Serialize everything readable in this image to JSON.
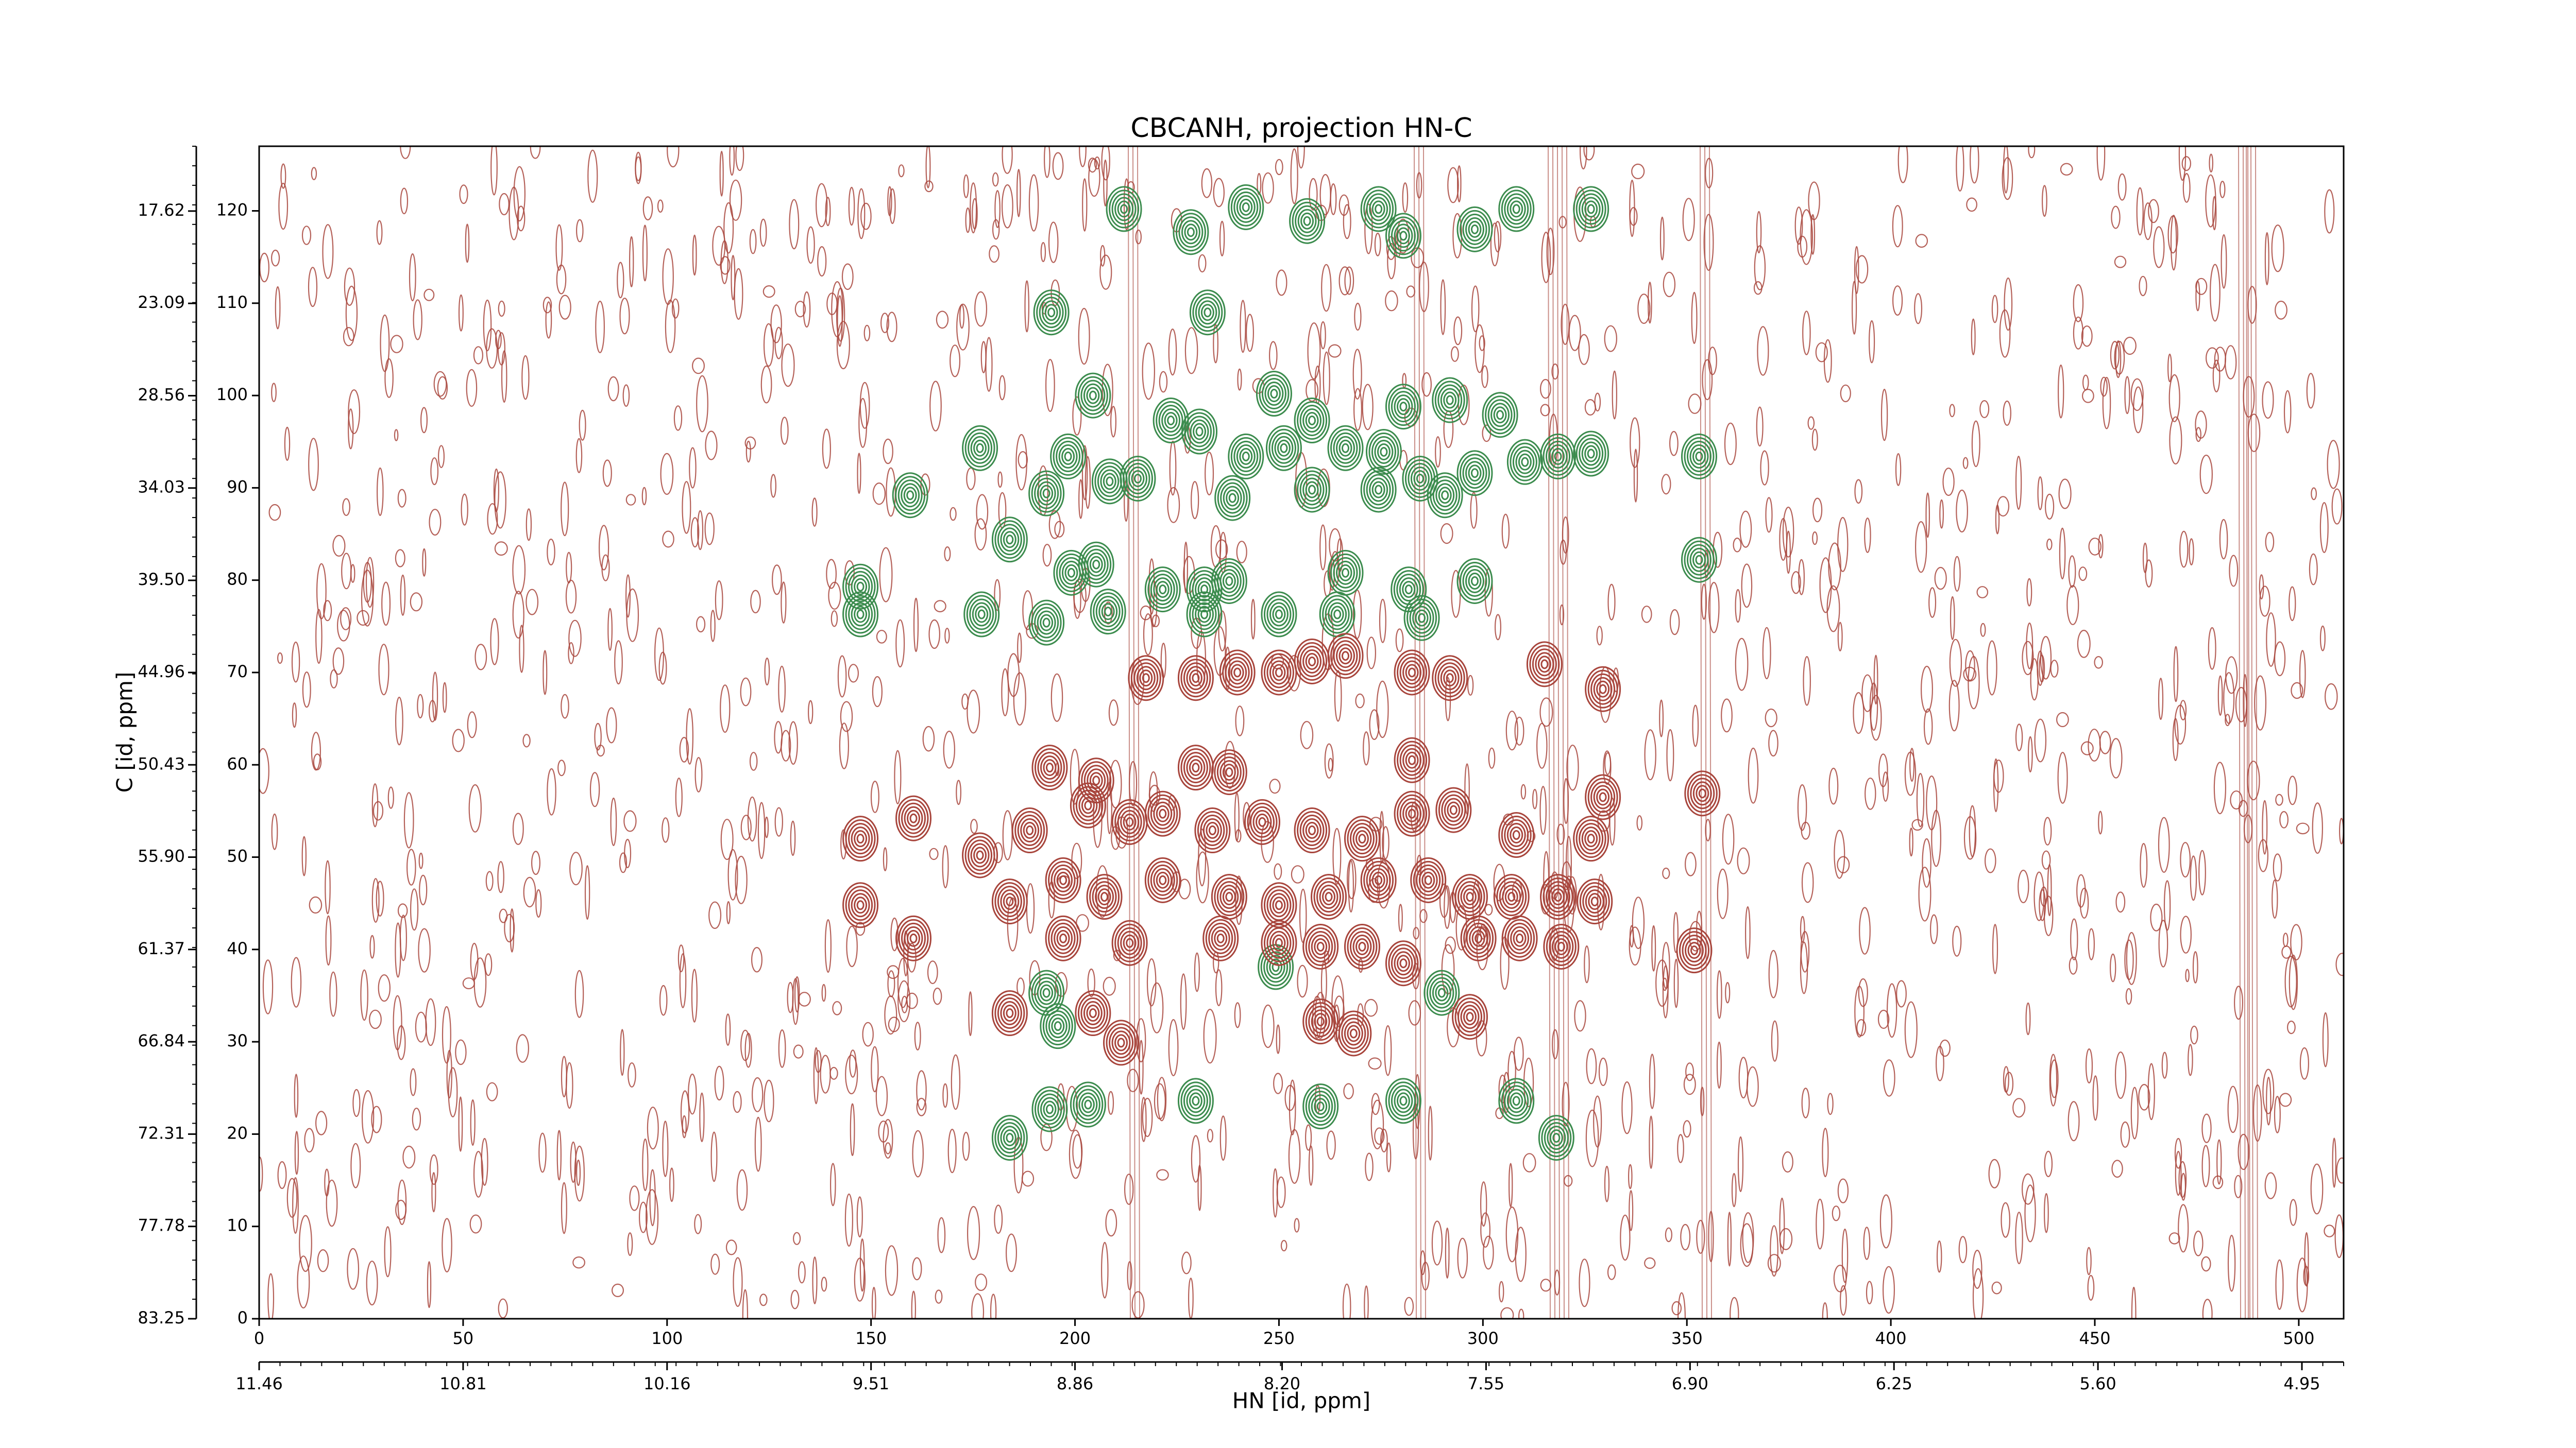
{
  "chart_data": {
    "type": "contour",
    "title": "CBCANH, projection HN-C",
    "xlabel": "HN [id, ppm]",
    "ylabel": "C [id, ppm]",
    "xlim": [
      0,
      511
    ],
    "ylim": [
      0,
      127
    ],
    "xticks": [
      0,
      50,
      100,
      150,
      200,
      250,
      300,
      350,
      400,
      450,
      500
    ],
    "yticks": [
      0,
      10,
      20,
      30,
      40,
      50,
      60,
      70,
      80,
      90,
      100,
      110,
      120
    ],
    "x2lim": [
      11.46,
      4.817
    ],
    "x2ticks": [
      11.46,
      10.81,
      10.16,
      9.51,
      8.86,
      {
        "value": 8.2,
        "label": "8.20"
      },
      7.55,
      {
        "value": 6.9,
        "label": "6.90"
      },
      6.25,
      {
        "value": 5.6,
        "label": "5.60"
      },
      4.95
    ],
    "y2lim": [
      83.25,
      13.78
    ],
    "y2ticks": [
      83.25,
      77.78,
      72.31,
      66.84,
      61.37,
      {
        "value": 55.9,
        "label": "55.90"
      },
      50.43,
      44.96,
      {
        "value": 39.5,
        "label": "39.50"
      },
      34.03,
      28.56,
      23.09,
      17.62
    ],
    "series": [
      {
        "color": "#3c8c4e",
        "x": [
          212,
          228.4,
          241.9,
          256.9,
          274.4,
          280.5,
          298,
          308.2,
          326.5,
          194.2,
          232.5,
          204.4,
          223.5,
          248.8,
          280.5,
          291.9,
          304.2,
          176.7,
          198.3,
          208.5,
          215.4,
          230.5,
          241.9,
          251.2,
          258.1,
          266.3,
          275.7,
          284.6,
          298,
          310.3,
          318.4,
          326.5,
          353,
          159.6,
          193,
          238.6,
          258.1,
          274.4,
          290.7,
          184,
          353,
          199.1,
          205.2,
          221.5,
          231.7,
          237.8,
          266.3,
          281.8,
          298,
          147.4,
          147.4,
          177.1,
          193,
          208.1,
          231.7,
          250,
          264.3,
          285,
          249.2,
          289.9,
          195.8,
          193,
          203.2,
          193.8,
          229.6,
          260.2,
          280.5,
          308.2,
          318,
          184
        ],
        "y": [
          120.2,
          117.7,
          120.4,
          118.9,
          120.2,
          117.3,
          118,
          120.2,
          120.2,
          109,
          109,
          100,
          97.3,
          100.2,
          98.8,
          99.5,
          97.9,
          94.3,
          93.4,
          90.7,
          91,
          96.1,
          93.4,
          94.3,
          97.3,
          94.3,
          93.9,
          91,
          91.6,
          92.8,
          93.4,
          93.7,
          93.4,
          89.2,
          89.4,
          88.9,
          89.8,
          89.8,
          89.2,
          84.4,
          82.2,
          80.8,
          81.7,
          79,
          79,
          79.9,
          80.8,
          79,
          79.9,
          79.3,
          76.3,
          76.3,
          75.4,
          76.6,
          76.3,
          76.3,
          76.3,
          75.9,
          38.1,
          35.3,
          31.7,
          35.3,
          23.2,
          22.7,
          23.6,
          23,
          23.6,
          23.6,
          19.6,
          19.6
        ]
      },
      {
        "color": "#a8453c",
        "x": [
          217.4,
          229.6,
          239.8,
          250,
          258.1,
          266.3,
          282.6,
          291.9,
          315.1,
          329.4,
          193.8,
          205.2,
          229.6,
          237.8,
          282.6,
          329.4,
          353.8,
          147.4,
          160.4,
          176.7,
          188.9,
          203.2,
          213.4,
          221.5,
          233.7,
          245.9,
          258.1,
          270.4,
          282.6,
          292.8,
          308.2,
          326.5,
          184,
          197.1,
          207.2,
          221.5,
          237.8,
          250,
          262.2,
          274.4,
          286.6,
          296.8,
          307,
          318.4,
          327.4,
          147.4,
          160.4,
          197.1,
          213.4,
          235.7,
          250,
          260.2,
          270.4,
          280.5,
          298.9,
          309,
          319.2,
          351.8,
          184,
          204.4,
          211.3,
          260.2,
          268.3,
          296.8
        ],
        "y": [
          69.4,
          69.4,
          70,
          70,
          71.2,
          71.8,
          70,
          69.4,
          70.9,
          68.2,
          59.7,
          58.3,
          59.7,
          59.2,
          60.5,
          56.5,
          56.9,
          52,
          54.2,
          50.2,
          52.9,
          55.6,
          53.8,
          54.7,
          52.9,
          53.8,
          52.9,
          52,
          54.7,
          55.1,
          52.4,
          52,
          45.2,
          47.5,
          45.7,
          47.5,
          45.7,
          44.8,
          45.7,
          47.5,
          47.5,
          45.7,
          45.7,
          45.7,
          45.2,
          44.8,
          41.2,
          41.2,
          40.7,
          41.2,
          40.7,
          40.3,
          40.3,
          38.5,
          41.2,
          41.2,
          40.3,
          39.9,
          33.1,
          33.1,
          29.9,
          32.2,
          30.9,
          32.7
        ]
      }
    ]
  }
}
